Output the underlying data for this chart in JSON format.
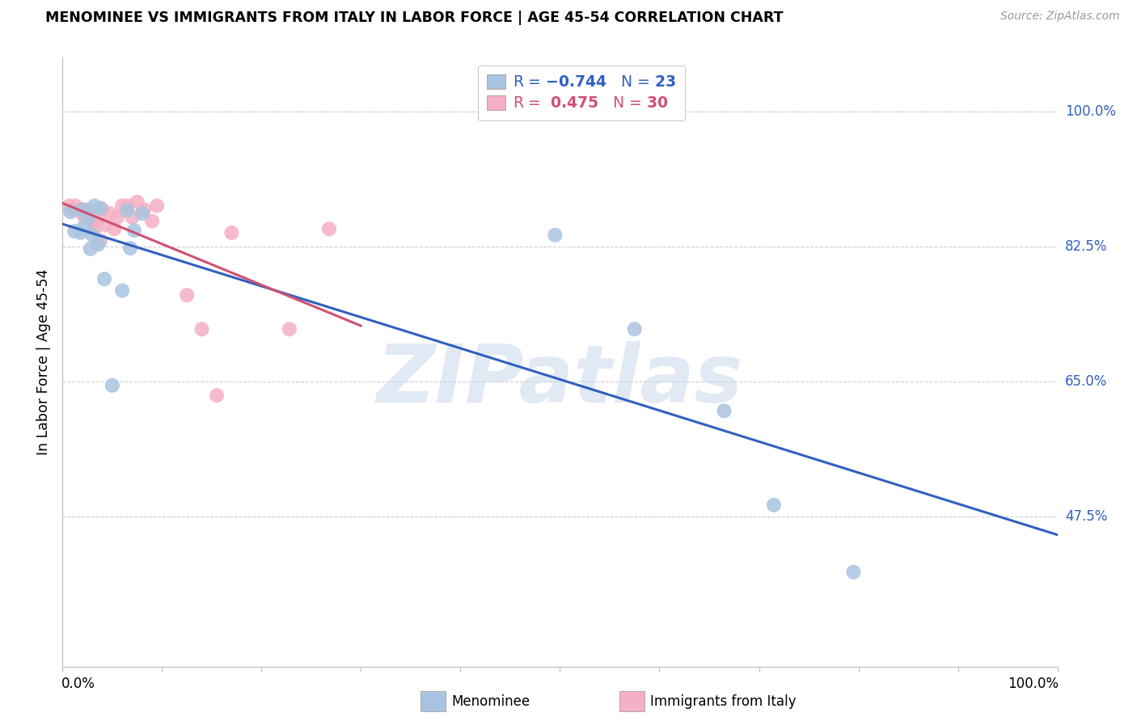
{
  "title": "MENOMINEE VS IMMIGRANTS FROM ITALY IN LABOR FORCE | AGE 45-54 CORRELATION CHART",
  "source": "Source: ZipAtlas.com",
  "ylabel": "In Labor Force | Age 45-54",
  "xlim": [
    0.0,
    1.0
  ],
  "ylim": [
    0.28,
    1.07
  ],
  "ytick_vals": [
    0.475,
    0.65,
    0.825,
    1.0
  ],
  "ytick_labels": [
    "47.5%",
    "65.0%",
    "82.5%",
    "100.0%"
  ],
  "xtick_vals": [
    0.0,
    0.1,
    0.2,
    0.3,
    0.4,
    0.5,
    0.6,
    0.7,
    0.8,
    0.9,
    1.0
  ],
  "menominee_R": -0.744,
  "menominee_N": 23,
  "italy_R": 0.475,
  "italy_N": 30,
  "menominee_color": "#a8c4e0",
  "italy_color": "#f4b0c4",
  "menominee_line_color": "#3060c0",
  "italy_line_color": "#d05070",
  "watermark": "ZIPatlas",
  "menominee_x": [
    0.008,
    0.012,
    0.018,
    0.02,
    0.022,
    0.026,
    0.028,
    0.03,
    0.032,
    0.036,
    0.038,
    0.042,
    0.05,
    0.06,
    0.065,
    0.068,
    0.072,
    0.08,
    0.495,
    0.575,
    0.665,
    0.715,
    0.795
  ],
  "menominee_y": [
    0.87,
    0.845,
    0.843,
    0.873,
    0.852,
    0.863,
    0.822,
    0.84,
    0.878,
    0.828,
    0.875,
    0.783,
    0.645,
    0.768,
    0.872,
    0.823,
    0.846,
    0.868,
    0.84,
    0.718,
    0.612,
    0.49,
    0.403
  ],
  "italy_x": [
    0.007,
    0.01,
    0.013,
    0.017,
    0.02,
    0.023,
    0.025,
    0.027,
    0.03,
    0.032,
    0.035,
    0.038,
    0.04,
    0.043,
    0.048,
    0.052,
    0.055,
    0.06,
    0.065,
    0.07,
    0.075,
    0.082,
    0.09,
    0.095,
    0.125,
    0.14,
    0.155,
    0.17,
    0.228,
    0.268
  ],
  "italy_y": [
    0.878,
    0.873,
    0.878,
    0.873,
    0.868,
    0.863,
    0.873,
    0.868,
    0.858,
    0.848,
    0.858,
    0.833,
    0.873,
    0.853,
    0.868,
    0.848,
    0.863,
    0.878,
    0.878,
    0.863,
    0.883,
    0.873,
    0.858,
    0.878,
    0.762,
    0.718,
    0.632,
    0.843,
    0.718,
    0.848
  ],
  "background_color": "#ffffff",
  "grid_color": "#cccccc"
}
